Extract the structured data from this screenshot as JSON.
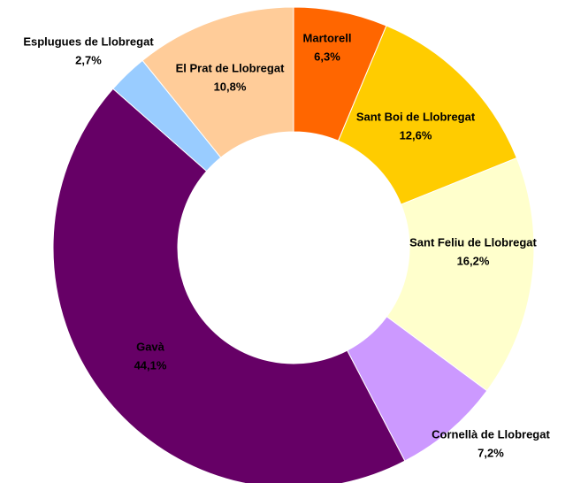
{
  "chart_data": {
    "type": "donut",
    "categories": [
      "Martorell",
      "Sant Boi de Llobregat",
      "Sant Feliu de Llobregat",
      "Cornellà de Llobregat",
      "Gavà",
      "Esplugues de Llobregat",
      "El Prat de Llobregat"
    ],
    "values": [
      6.3,
      12.6,
      16.2,
      7.2,
      44.1,
      2.7,
      10.8
    ],
    "value_labels": [
      "6,3%",
      "12,6%",
      "16,2%",
      "7,2%",
      "44,1%",
      "2,7%",
      "10,8%"
    ],
    "colors": [
      "#ff6600",
      "#ffcc00",
      "#ffffcc",
      "#cc99ff",
      "#660066",
      "#99ccff",
      "#ffcc99"
    ]
  }
}
